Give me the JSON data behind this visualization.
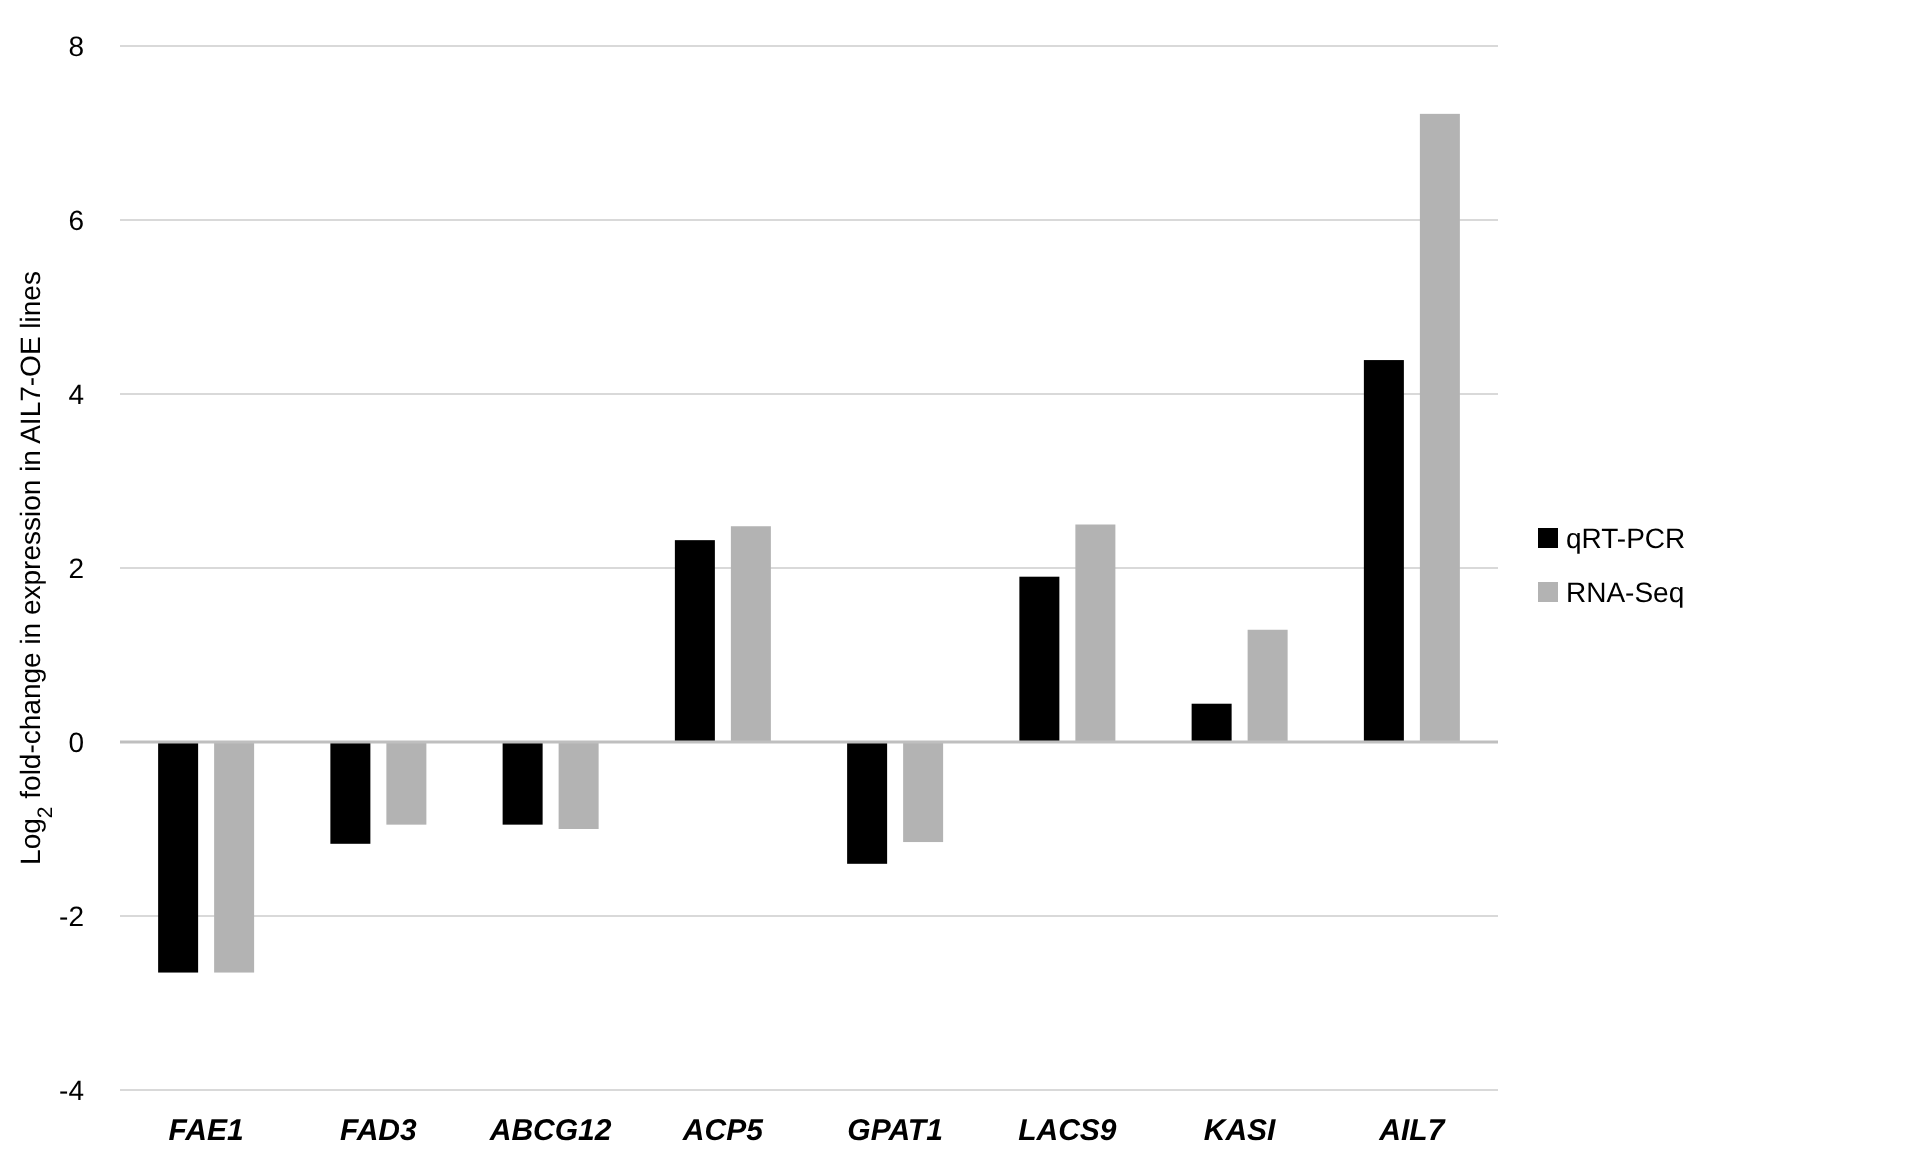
{
  "chart_data": {
    "type": "bar",
    "ylabel": "Log$_{2}$ fold-change in expression in AIL7-OE lines",
    "categories": [
      "FAE1",
      "FAD3",
      "ABCG12",
      "ACP5",
      "GPAT1",
      "LACS9",
      "KASI",
      "AIL7"
    ],
    "series": [
      {
        "name": "qRT-PCR",
        "color": "#000000",
        "values": [
          -2.65,
          -1.17,
          -0.95,
          2.32,
          -1.4,
          1.9,
          0.44,
          4.39
        ]
      },
      {
        "name": "RNA-Seq",
        "color": "#b3b3b3",
        "values": [
          -2.65,
          -0.95,
          -1.0,
          2.48,
          -1.15,
          2.5,
          1.29,
          7.22
        ]
      }
    ],
    "ylim": [
      -4,
      8
    ],
    "yticks": [
      -4,
      -2,
      0,
      2,
      4,
      6,
      8
    ],
    "grid": "y",
    "legend": "right"
  }
}
